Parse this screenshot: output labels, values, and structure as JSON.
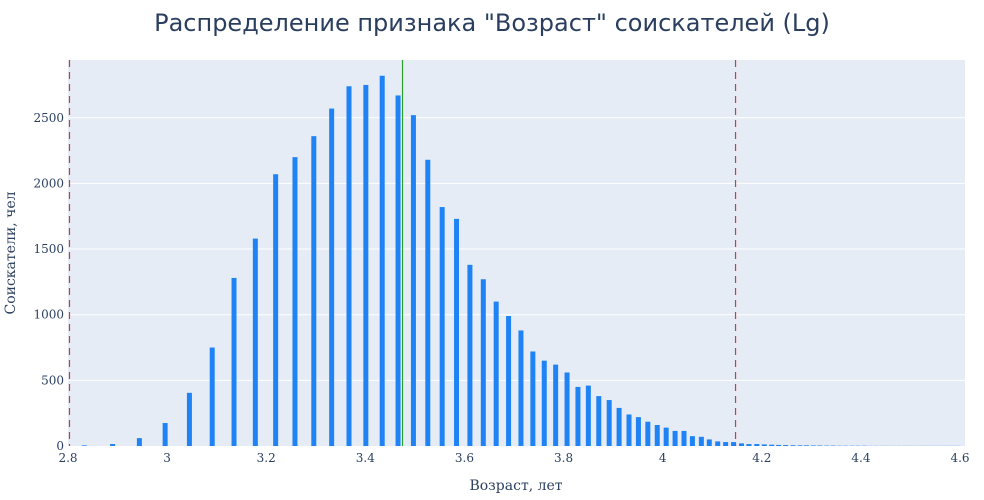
{
  "chart_data": {
    "type": "bar",
    "title": "Распределение признака \"Возраст\" соискателей (Lg)",
    "xlabel": "Возраст, лет",
    "ylabel": "Соискатели, чел",
    "xlim": [
      2.8,
      4.61
    ],
    "ylim": [
      0,
      2940
    ],
    "x_ticks": [
      2.8,
      3,
      3.2,
      3.4,
      3.6,
      3.8,
      4,
      4.2,
      4.4,
      4.6
    ],
    "x_tick_labels": [
      "2.8",
      "3",
      "3.2",
      "3.4",
      "3.6",
      "3.8",
      "4",
      "4.2",
      "4.4",
      "4.6"
    ],
    "y_ticks": [
      0,
      500,
      1000,
      1500,
      2000,
      2500
    ],
    "y_tick_labels": [
      "0",
      "500",
      "1000",
      "1500",
      "2000",
      "2500"
    ],
    "grid": true,
    "bar_color": "#1f83f5",
    "background_color": "#e5ecf6",
    "vlines": [
      {
        "x": 2.803,
        "style": "dashed",
        "color": "#e3342f"
      },
      {
        "x": 3.475,
        "style": "solid",
        "color": "#2ca02c"
      },
      {
        "x": 4.147,
        "style": "dashed",
        "color": "#e3342f"
      }
    ],
    "x": [
      2.833,
      2.89,
      2.944,
      2.996,
      3.045,
      3.091,
      3.135,
      3.178,
      3.219,
      3.258,
      3.296,
      3.332,
      3.367,
      3.401,
      3.434,
      3.466,
      3.497,
      3.526,
      3.555,
      3.584,
      3.611,
      3.638,
      3.664,
      3.689,
      3.714,
      3.738,
      3.761,
      3.784,
      3.807,
      3.829,
      3.85,
      3.871,
      3.892,
      3.912,
      3.932,
      3.951,
      3.97,
      3.989,
      4.007,
      4.025,
      4.043,
      4.06,
      4.078,
      4.094,
      4.111,
      4.127,
      4.143,
      4.159,
      4.174,
      4.19,
      4.205,
      4.22,
      4.234,
      4.248,
      4.263,
      4.277,
      4.29,
      4.304,
      4.317,
      4.331,
      4.344,
      4.357,
      4.369,
      4.382,
      4.394,
      4.407,
      4.419,
      4.431,
      4.443,
      4.454,
      4.466,
      4.477,
      4.489,
      4.5,
      4.511,
      4.522,
      4.533,
      4.543,
      4.554,
      4.564,
      4.575,
      4.585,
      4.595
    ],
    "values": [
      5,
      15,
      60,
      175,
      405,
      750,
      1280,
      1580,
      2070,
      2200,
      2360,
      2570,
      2740,
      2750,
      2820,
      2670,
      2520,
      2180,
      1820,
      1730,
      1380,
      1270,
      1100,
      990,
      880,
      720,
      650,
      620,
      560,
      450,
      460,
      380,
      350,
      290,
      240,
      220,
      185,
      160,
      140,
      115,
      115,
      75,
      70,
      50,
      35,
      30,
      30,
      20,
      15,
      15,
      12,
      10,
      8,
      7,
      6,
      5,
      5,
      4,
      4,
      3,
      3,
      2,
      2,
      2,
      2,
      2,
      1,
      1,
      1,
      1,
      1,
      1,
      1,
      1,
      1,
      1,
      1,
      1,
      1,
      1,
      1,
      1,
      1
    ]
  }
}
